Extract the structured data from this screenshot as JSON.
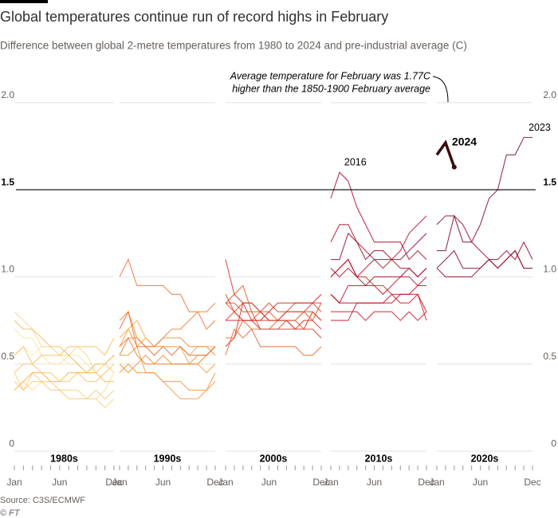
{
  "chart_data": {
    "type": "line",
    "title": "Global temperatures continue run of record highs in February",
    "subtitle": "Difference between global 2-metre temperatures from 1980 to 2024 and pre-industrial average (C)",
    "source": "Source: C3S/ECMWF",
    "credit": "© FT",
    "ylim": [
      -0.1,
      2.2
    ],
    "yticks": [
      0,
      0.5,
      {
        "value": 1,
        "label": "1.0"
      },
      1.5,
      {
        "value": 2,
        "label": "2.0"
      }
    ],
    "reference": 1.5,
    "xlim": [
      0,
      11
    ],
    "xticks": [
      {
        "value": 0,
        "label": "Jan"
      },
      {
        "value": 5,
        "label": "Jun"
      },
      {
        "value": 11,
        "label": "Dec"
      }
    ],
    "color_scale": [
      "#fde9a9",
      "#f7a540",
      "#e85a2a",
      "#c8102e",
      "#7a0c2e"
    ],
    "grid": true,
    "panels": [
      {
        "label": "1980s",
        "series": [
          {
            "values": [
              0.55,
              0.6,
              0.55,
              0.6,
              0.6,
              0.55,
              0.5,
              0.5,
              0.45,
              0.45,
              0.5,
              0.45
            ]
          },
          {
            "values": [
              0.7,
              0.65,
              0.65,
              0.55,
              0.5,
              0.5,
              0.55,
              0.55,
              0.5,
              0.45,
              0.5,
              0.55
            ]
          },
          {
            "values": [
              0.35,
              0.4,
              0.35,
              0.4,
              0.4,
              0.35,
              0.3,
              0.3,
              0.3,
              0.3,
              0.35,
              0.45
            ]
          },
          {
            "values": [
              0.8,
              0.75,
              0.7,
              0.6,
              0.6,
              0.55,
              0.55,
              0.6,
              0.55,
              0.45,
              0.5,
              0.45
            ]
          },
          {
            "values": [
              0.45,
              0.35,
              0.45,
              0.4,
              0.4,
              0.35,
              0.35,
              0.35,
              0.3,
              0.3,
              0.25,
              0.3
            ]
          },
          {
            "values": [
              0.4,
              0.35,
              0.4,
              0.4,
              0.35,
              0.35,
              0.3,
              0.3,
              0.3,
              0.35,
              0.3,
              0.35
            ]
          },
          {
            "values": [
              0.45,
              0.5,
              0.5,
              0.45,
              0.45,
              0.4,
              0.4,
              0.45,
              0.4,
              0.4,
              0.45,
              0.5
            ]
          },
          {
            "values": [
              0.55,
              0.6,
              0.5,
              0.55,
              0.55,
              0.55,
              0.6,
              0.6,
              0.6,
              0.6,
              0.55,
              0.65
            ]
          },
          {
            "values": [
              0.75,
              0.7,
              0.7,
              0.65,
              0.6,
              0.6,
              0.55,
              0.5,
              0.45,
              0.45,
              0.4,
              0.4
            ]
          },
          {
            "values": [
              0.35,
              0.4,
              0.45,
              0.45,
              0.4,
              0.4,
              0.45,
              0.45,
              0.45,
              0.5,
              0.5,
              0.55
            ]
          }
        ]
      },
      {
        "label": "1990s",
        "series": [
          {
            "values": [
              0.65,
              0.7,
              0.75,
              0.65,
              0.6,
              0.6,
              0.6,
              0.6,
              0.55,
              0.6,
              0.6,
              0.6
            ]
          },
          {
            "values": [
              0.6,
              0.7,
              0.6,
              0.65,
              0.6,
              0.6,
              0.6,
              0.6,
              0.5,
              0.5,
              0.45,
              0.5
            ]
          },
          {
            "values": [
              0.55,
              0.55,
              0.6,
              0.45,
              0.45,
              0.4,
              0.35,
              0.3,
              0.3,
              0.3,
              0.35,
              0.4
            ]
          },
          {
            "values": [
              0.45,
              0.5,
              0.45,
              0.45,
              0.45,
              0.4,
              0.4,
              0.4,
              0.35,
              0.35,
              0.35,
              0.45
            ]
          },
          {
            "values": [
              0.5,
              0.45,
              0.5,
              0.55,
              0.5,
              0.55,
              0.5,
              0.5,
              0.5,
              0.55,
              0.55,
              0.6
            ]
          },
          {
            "values": [
              0.75,
              0.8,
              0.65,
              0.6,
              0.6,
              0.65,
              0.65,
              0.65,
              0.6,
              0.6,
              0.6,
              0.55
            ]
          },
          {
            "values": [
              0.55,
              0.65,
              0.55,
              0.5,
              0.5,
              0.5,
              0.5,
              0.5,
              0.5,
              0.5,
              0.55,
              0.6
            ]
          },
          {
            "values": [
              0.6,
              0.65,
              0.65,
              0.6,
              0.6,
              0.65,
              0.7,
              0.7,
              0.75,
              0.8,
              0.8,
              0.85
            ]
          },
          {
            "values": [
              1.0,
              1.1,
              0.95,
              0.95,
              0.95,
              0.95,
              0.9,
              0.9,
              0.8,
              0.8,
              0.7,
              0.75
            ]
          },
          {
            "values": [
              0.7,
              0.8,
              0.6,
              0.6,
              0.55,
              0.6,
              0.55,
              0.6,
              0.55,
              0.55,
              0.55,
              0.6
            ]
          }
        ]
      },
      {
        "label": "2000s",
        "series": [
          {
            "values": [
              0.55,
              0.7,
              0.65,
              0.7,
              0.6,
              0.6,
              0.6,
              0.6,
              0.6,
              0.55,
              0.55,
              0.6
            ]
          },
          {
            "values": [
              0.65,
              0.65,
              0.75,
              0.7,
              0.7,
              0.7,
              0.75,
              0.75,
              0.7,
              0.7,
              0.8,
              0.75
            ]
          },
          {
            "values": [
              0.85,
              0.9,
              0.95,
              0.8,
              0.8,
              0.8,
              0.75,
              0.75,
              0.75,
              0.7,
              0.8,
              0.75
            ]
          },
          {
            "values": [
              0.85,
              0.8,
              0.75,
              0.75,
              0.8,
              0.75,
              0.75,
              0.8,
              0.8,
              0.8,
              0.75,
              0.85
            ]
          },
          {
            "values": [
              0.85,
              0.85,
              0.8,
              0.8,
              0.7,
              0.7,
              0.7,
              0.75,
              0.75,
              0.8,
              0.8,
              0.75
            ]
          },
          {
            "values": [
              0.9,
              0.8,
              0.85,
              0.85,
              0.8,
              0.85,
              0.8,
              0.8,
              0.85,
              0.85,
              0.85,
              0.8
            ]
          },
          {
            "values": [
              0.75,
              0.8,
              0.75,
              0.75,
              0.75,
              0.75,
              0.75,
              0.8,
              0.8,
              0.8,
              0.85,
              0.85
            ]
          },
          {
            "values": [
              1.1,
              0.9,
              0.85,
              0.85,
              0.8,
              0.75,
              0.75,
              0.75,
              0.7,
              0.7,
              0.7,
              0.65
            ]
          },
          {
            "values": [
              0.6,
              0.65,
              0.85,
              0.75,
              0.7,
              0.7,
              0.7,
              0.7,
              0.7,
              0.75,
              0.75,
              0.7
            ]
          },
          {
            "values": [
              0.75,
              0.75,
              0.75,
              0.75,
              0.75,
              0.8,
              0.85,
              0.85,
              0.85,
              0.85,
              0.85,
              0.9
            ]
          }
        ]
      },
      {
        "label": "2010s",
        "series": [
          {
            "values": [
              1.0,
              1.05,
              1.1,
              1.0,
              1.0,
              0.95,
              0.95,
              0.9,
              0.85,
              0.85,
              0.9,
              0.75
            ]
          },
          {
            "values": [
              0.8,
              0.8,
              0.8,
              0.8,
              0.75,
              0.8,
              0.8,
              0.8,
              0.75,
              0.8,
              0.75,
              0.8
            ]
          },
          {
            "values": [
              0.75,
              0.75,
              0.75,
              0.85,
              0.85,
              0.85,
              0.85,
              0.9,
              0.9,
              0.9,
              0.9,
              0.8
            ]
          },
          {
            "values": [
              0.9,
              0.85,
              0.85,
              0.85,
              0.85,
              0.85,
              0.85,
              0.85,
              0.9,
              0.9,
              0.95,
              0.95
            ]
          },
          {
            "values": [
              0.9,
              0.85,
              0.95,
              0.95,
              0.95,
              0.95,
              0.9,
              0.95,
              1.0,
              1.0,
              0.95,
              1.0
            ]
          },
          {
            "values": [
              1.0,
              1.05,
              1.1,
              1.0,
              1.05,
              1.1,
              1.05,
              1.1,
              1.15,
              1.25,
              1.3,
              1.35
            ]
          },
          {
            "values": [
              1.45,
              1.6,
              1.55,
              1.4,
              1.3,
              1.2,
              1.2,
              1.2,
              1.2,
              1.1,
              1.15,
              1.1
            ],
            "label": "2016"
          },
          {
            "values": [
              1.2,
              1.3,
              1.3,
              1.2,
              1.15,
              1.1,
              1.1,
              1.1,
              1.05,
              1.05,
              1.0,
              1.05
            ]
          },
          {
            "values": [
              1.05,
              1.0,
              1.05,
              1.0,
              0.95,
              1.0,
              1.0,
              1.0,
              1.0,
              1.05,
              1.0,
              1.05
            ]
          },
          {
            "values": [
              1.1,
              1.1,
              1.25,
              1.2,
              1.1,
              1.15,
              1.15,
              1.1,
              1.1,
              1.15,
              1.2,
              1.25
            ]
          }
        ]
      },
      {
        "label": "2020s",
        "series": [
          {
            "values": [
              1.3,
              1.35,
              1.35,
              1.3,
              1.2,
              1.15,
              1.1,
              1.1,
              1.15,
              1.1,
              1.2,
              1.1
            ]
          },
          {
            "values": [
              1.05,
              1.0,
              1.0,
              1.0,
              1.0,
              1.05,
              1.1,
              1.05,
              1.1,
              1.15,
              1.05,
              1.05
            ]
          },
          {
            "values": [
              1.05,
              1.1,
              1.15,
              1.05,
              1.05,
              1.05,
              1.1,
              1.05,
              1.1,
              1.15,
              1.05,
              1.05
            ]
          },
          {
            "values": [
              1.15,
              1.15,
              1.35,
              1.2,
              1.2,
              1.3,
              1.45,
              1.5,
              1.7,
              1.7,
              1.8,
              1.8
            ],
            "label": "2023"
          },
          {
            "values": [
              1.7,
              1.77,
              1.63,
              null,
              null,
              null,
              null,
              null,
              null,
              null,
              null,
              null
            ],
            "label": "2024",
            "color": "#3d0a0f"
          }
        ]
      }
    ],
    "annotation": [
      "Average temperature for February was 1.77C",
      "higher than the 1850-1900 February average"
    ]
  }
}
